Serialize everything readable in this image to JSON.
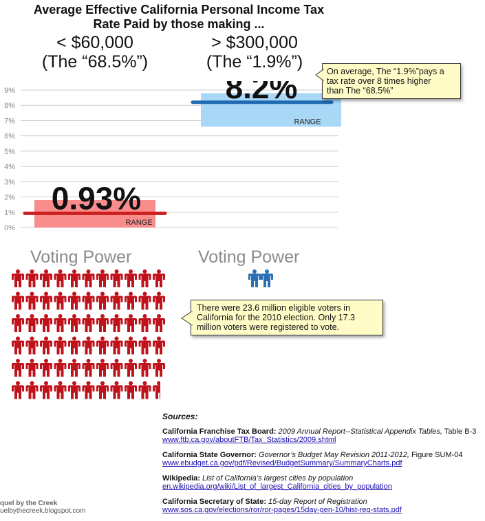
{
  "title_line1": "Average Effective California Personal Income Tax",
  "title_line2": "Rate Paid by those making ...",
  "groups": {
    "low": {
      "income": "< $60,000",
      "share": "(The “68.5%”)"
    },
    "high": {
      "income": "> $300,000",
      "share": "(The “1.9%”)"
    }
  },
  "chart_data": {
    "type": "bar",
    "categories": [
      "< $60,000",
      "> $300,000"
    ],
    "values": [
      0.93,
      8.2
    ],
    "value_labels": [
      "0.93%",
      "8.2%"
    ],
    "ranges": [
      [
        0.0,
        1.8
      ],
      [
        6.6,
        8.8
      ]
    ],
    "range_label": "RANGE",
    "ylim": [
      0,
      9
    ],
    "yticks": [
      "0%",
      "1%",
      "2%",
      "3%",
      "4%",
      "5%",
      "6%",
      "7%",
      "8%",
      "9%"
    ],
    "grid": true,
    "colors": {
      "low_range": "#f98c8c",
      "low_line": "#cc1f1f",
      "high_range": "#a9d8f6",
      "high_line": "#1f6bb3",
      "grid": "#cccccc"
    }
  },
  "callout_tax": {
    "line1": "On average, The “1.9%”pays a",
    "line2": "tax rate over 8 times higher",
    "line3": "than The “68.5%”"
  },
  "voting": {
    "low_label": "Voting Power",
    "high_label": "Voting Power",
    "low_icons": 66,
    "low_partial_last": true,
    "high_icons": 2,
    "low_color": "#c0121a",
    "high_color": "#2a6fb5",
    "icon": "person-icon"
  },
  "callout_vote": {
    "line1": "There were 23.6 million eligible voters in",
    "line2": "California for the 2010 election. Only 17.3",
    "line3": "million voters were registered to vote."
  },
  "sources": {
    "header": "Sources:",
    "items": [
      {
        "org": "California Franchise Tax Board:",
        "doc": " 2009 Annual Report--Statistical Appendix Tables,",
        "extra": " Table B-3",
        "link": "www.ftb.ca.gov/aboutFTB/Tax_Statistics/2009.shtml"
      },
      {
        "org": "California State Governor:",
        "doc": " Governor’s Budget May Revision 2011-2012,",
        "extra": " Figure SUM-04",
        "link": "www.ebudget.ca.gov/pdf/Revised/BudgetSummary/SummaryCharts.pdf"
      },
      {
        "org": "Wikipedia:",
        "doc": " List of California’s largest cities by population",
        "extra": "",
        "link": "en.wikipedia.org/wiki/List_of_largest_California_cities_by_population"
      },
      {
        "org": "California Secretary of State:",
        "doc": " 15-day Report of Registration",
        "extra": "",
        "link": "www.sos.ca.gov/elections/ror/ror-pages/15day-gen-10/hist-reg-stats.pdf"
      }
    ]
  },
  "credit": {
    "line1": "quel by the Creek",
    "line2": "uelbythecreek.blogspot.com"
  }
}
